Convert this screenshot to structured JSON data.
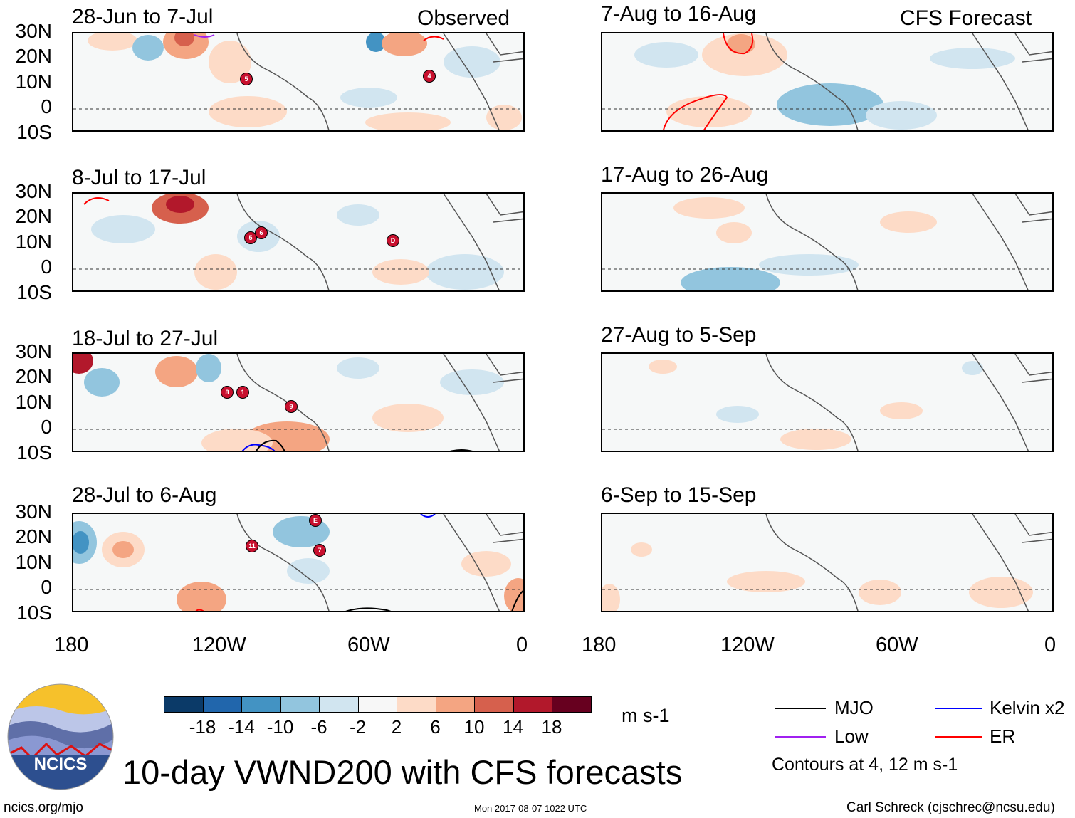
{
  "header": {
    "observed_label": "Observed",
    "forecast_label": "CFS Forecast"
  },
  "panels": {
    "observed": [
      {
        "period": "28-Jun to 7-Jul",
        "storms": [
          "5",
          "4"
        ]
      },
      {
        "period": "8-Jul to 17-Jul",
        "storms": [
          "5",
          "6",
          "D"
        ]
      },
      {
        "period": "18-Jul to 27-Jul",
        "storms": [
          "8",
          "1",
          "9"
        ]
      },
      {
        "period": "28-Jul to 6-Aug",
        "storms": [
          "E",
          "11",
          "7"
        ]
      }
    ],
    "forecast": [
      {
        "period": "7-Aug to 16-Aug"
      },
      {
        "period": "17-Aug to 26-Aug"
      },
      {
        "period": "27-Aug to 5-Sep"
      },
      {
        "period": "6-Sep to 15-Sep"
      }
    ]
  },
  "axes": {
    "lat_labels": [
      "30N",
      "20N",
      "10N",
      "0",
      "10S"
    ],
    "lon_labels": [
      "180",
      "120W",
      "60W",
      "0"
    ]
  },
  "colorbar": {
    "ticks": [
      "-18",
      "-14",
      "-10",
      "-6",
      "-2",
      "2",
      "6",
      "10",
      "14",
      "18"
    ],
    "units": "m s-1",
    "colors": [
      "#0b3a68",
      "#2166ac",
      "#4393c3",
      "#92c5de",
      "#d1e5f0",
      "#f7f7f7",
      "#fddbc7",
      "#f4a582",
      "#d6604d",
      "#b2182b",
      "#67001f"
    ]
  },
  "legend": {
    "items": [
      {
        "label": "MJO",
        "color": "#000000"
      },
      {
        "label": "Kelvin x2",
        "color": "#0000ff"
      },
      {
        "label": "Low",
        "color": "#a020f0"
      },
      {
        "label": "ER",
        "color": "#ff0000"
      }
    ],
    "contour_note": "Contours at 4, 12 m s-1"
  },
  "branding": {
    "logo_text": "NCICS",
    "url": "ncics.org/mjo",
    "author": "Carl Schreck (cjschrec@ncsu.edu)"
  },
  "footer": {
    "title": "10-day VWND200 with CFS forecasts",
    "timestamp": "Mon 2017-08-07 1022 UTC"
  }
}
